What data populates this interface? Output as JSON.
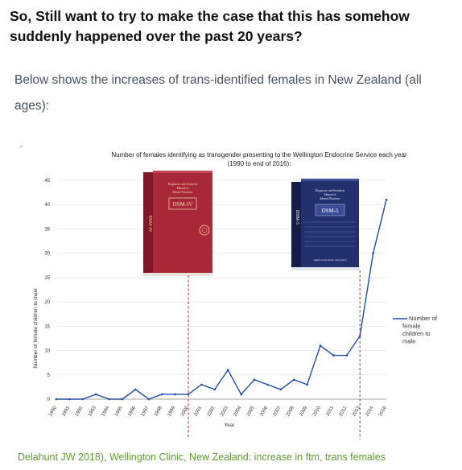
{
  "headline": "So, Still want to try to make the case that this has somehow suddenly happened over the past 20 years?",
  "subtitle": "Below shows the increases of trans-identified females in New Zealand (all ages):",
  "caption": "Delahunt JW 2018), Wellington Clinic, New Zealand: increase in ftm, trans females",
  "books": {
    "dsm4": {
      "title": "DSM-IV",
      "spine": "DSM-IV",
      "line1": "Diagnostic and Statistical",
      "line2": "Manual of",
      "line3": "Mental Disorders"
    },
    "dsm5": {
      "title": "DSM-5",
      "spine": "DSM-5",
      "line1": "Diagnostic and Statistical",
      "line2": "Manual of",
      "line3": "Mental Disorders",
      "publisher": "American Psychiatric Association"
    }
  },
  "colors": {
    "series": "#1f4ea8",
    "marker_line": "#cc2222",
    "caption": "#5f9e2f",
    "dsm4": "#a8283a",
    "dsm5": "#23306e"
  },
  "chart_data": {
    "type": "line",
    "title_line1": "Number of females identifying as transgender presenting to the Wellington Endocrine Service each year",
    "title_line2": "(1990 to end of 2016):",
    "xlabel": "Year",
    "ylabel": "Number of female children to male",
    "x": [
      "1990",
      "1991",
      "1992",
      "1993",
      "1994",
      "1995",
      "1996",
      "1997",
      "1998",
      "1999",
      "2000",
      "2001",
      "2002",
      "2003",
      "2004",
      "2005",
      "2006",
      "2007",
      "2008",
      "2009",
      "2010",
      "2011",
      "2012",
      "2013",
      "2014",
      "2016"
    ],
    "series": [
      {
        "name": "Number of female children to male",
        "values": [
          0,
          0,
          0,
          1,
          0,
          0,
          2,
          0,
          1,
          1,
          1,
          3,
          2,
          6,
          1,
          4,
          3,
          2,
          4,
          3,
          11,
          9,
          9,
          13,
          30,
          41
        ]
      }
    ],
    "ylim": [
      0,
      45
    ],
    "yticks": [
      0,
      5,
      10,
      15,
      20,
      25,
      30,
      35,
      40,
      45
    ],
    "legend_position": "right",
    "markers": [
      {
        "at": "2000",
        "book": "DSM-IV"
      },
      {
        "at": "2013",
        "book": "DSM-5"
      }
    ]
  }
}
